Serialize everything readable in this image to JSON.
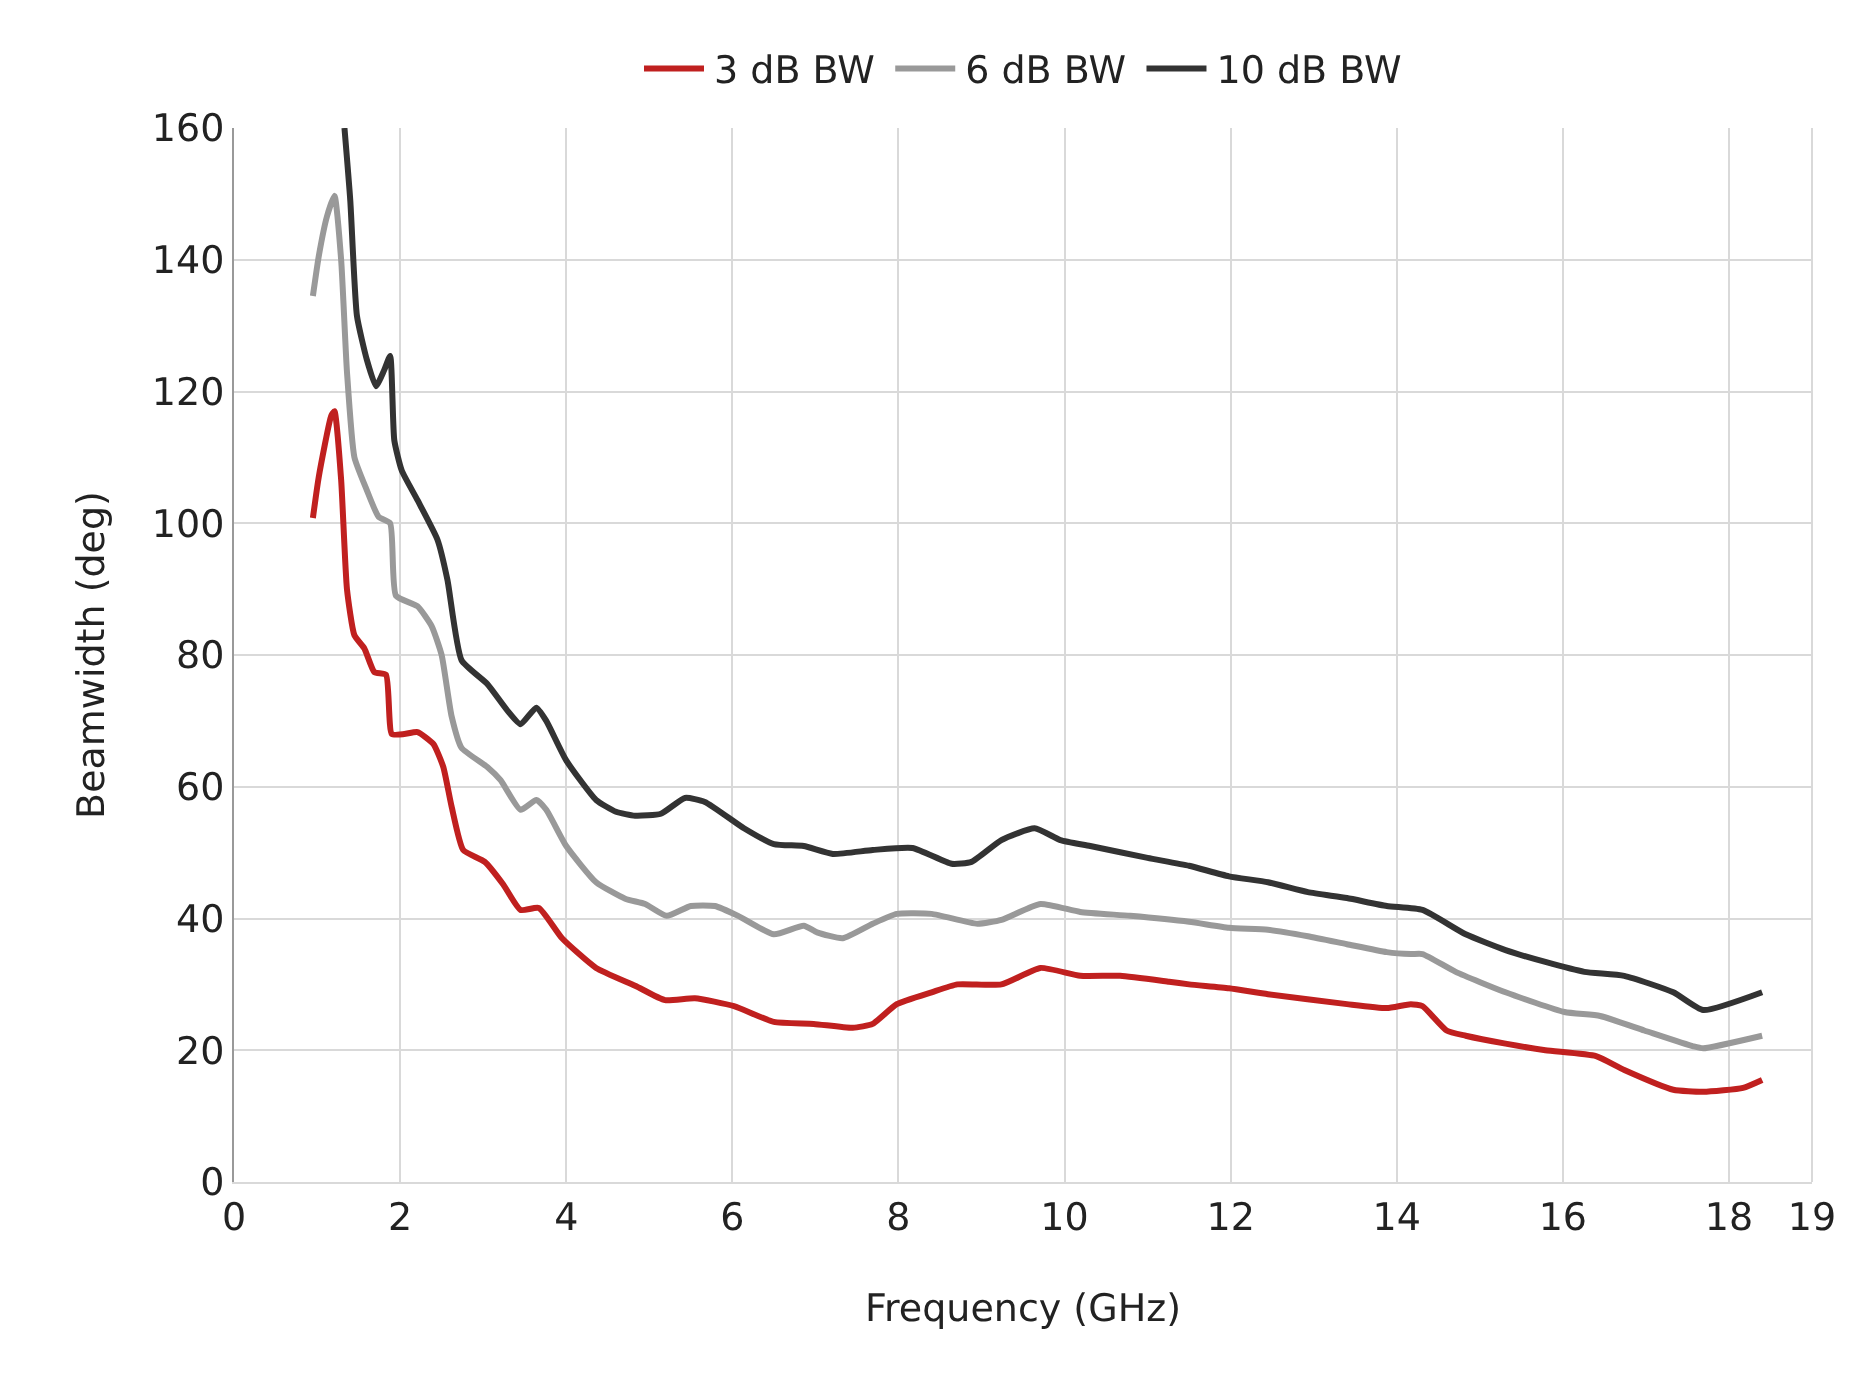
{
  "chart_data": {
    "type": "line",
    "xlabel": "Frequency (GHz)",
    "ylabel": "Beamwidth (deg)",
    "xlim": [
      0,
      19
    ],
    "xticks": [
      0,
      2,
      4,
      6,
      8,
      10,
      12,
      14,
      16,
      18,
      19
    ],
    "ylim": [
      0,
      160
    ],
    "yticks": [
      0,
      20,
      40,
      60,
      80,
      100,
      120,
      140,
      160
    ],
    "grid": true,
    "legend": "top",
    "line_style": "solid",
    "series": [
      {
        "name": "3 dB BW",
        "color": "#c0201f",
        "x": [
          0.95,
          1.02,
          1.17,
          1.21,
          1.29,
          1.36,
          1.45,
          1.57,
          1.69,
          1.83,
          1.9,
          2.05,
          2.21,
          2.4,
          2.52,
          2.62,
          2.76,
          3.02,
          3.24,
          3.45,
          3.67,
          3.95,
          4.36,
          4.83,
          5.19,
          5.55,
          6.02,
          6.5,
          6.98,
          7.45,
          7.69,
          7.98,
          8.4,
          8.71,
          9.24,
          9.71,
          10.19,
          10.67,
          11.26,
          11.5,
          11.98,
          12.45,
          13.4,
          13.88,
          14.17,
          14.31,
          14.6,
          14.83,
          15.31,
          15.79,
          16.4,
          16.74,
          17.33,
          17.69,
          18.17,
          18.4
        ],
        "values": [
          100.8,
          107,
          116.3,
          117,
          106.6,
          90,
          83,
          81,
          77.4,
          77,
          68,
          68,
          68.3,
          66.5,
          63,
          57,
          50.4,
          48.6,
          45.2,
          41.3,
          41.6,
          37,
          32.5,
          29.8,
          27.6,
          27.9,
          26.7,
          24.3,
          24,
          23.4,
          24,
          27,
          28.8,
          30,
          30,
          32.5,
          31.3,
          31.3,
          30.4,
          30,
          29.4,
          28.5,
          27,
          26.4,
          27,
          26.7,
          23,
          22.2,
          21,
          20,
          19.1,
          17,
          14,
          13.7,
          14.3,
          15.5
        ]
      },
      {
        "name": "6 dB BW",
        "color": "#999999",
        "x": [
          0.95,
          1.02,
          1.12,
          1.21,
          1.29,
          1.36,
          1.45,
          1.6,
          1.74,
          1.88,
          1.95,
          2.21,
          2.38,
          2.5,
          2.62,
          2.74,
          3.05,
          3.21,
          3.45,
          3.64,
          3.76,
          4,
          4.36,
          4.71,
          4.95,
          5.21,
          5.5,
          5.79,
          6.07,
          6.5,
          6.86,
          7.02,
          7.33,
          7.69,
          7.98,
          8.4,
          8.95,
          9.24,
          9.71,
          10.19,
          10.79,
          11.5,
          11.98,
          12.45,
          12.93,
          13.4,
          13.88,
          14.17,
          14.31,
          14.71,
          15.31,
          16.02,
          16.45,
          16.98,
          17.57,
          17.69,
          18.4
        ],
        "values": [
          134.5,
          140.5,
          146.6,
          149.7,
          140,
          123,
          110,
          105,
          101,
          100,
          89,
          87.4,
          84.4,
          80,
          70.7,
          65.9,
          63,
          61,
          56.5,
          58,
          56.5,
          51,
          45.5,
          43,
          42.2,
          40.4,
          41.9,
          41.9,
          40.4,
          37.6,
          38.9,
          37.9,
          37,
          39.2,
          40.7,
          40.7,
          39.2,
          39.8,
          42.2,
          41,
          40.4,
          39.5,
          38.6,
          38.3,
          37.3,
          36.1,
          34.9,
          34.6,
          34.6,
          31.9,
          28.8,
          25.8,
          25.2,
          23,
          20.6,
          20.3,
          22.2
        ]
      },
      {
        "name": "10 dB BW",
        "color": "#333333",
        "x": [
          1.33,
          1.4,
          1.48,
          1.6,
          1.71,
          1.81,
          1.88,
          1.93,
          2.02,
          2.21,
          2.45,
          2.57,
          2.74,
          3.05,
          3.29,
          3.45,
          3.64,
          3.76,
          4,
          4.36,
          4.6,
          4.83,
          5.14,
          5.43,
          5.67,
          6.14,
          6.5,
          6.86,
          7.21,
          7.69,
          8.17,
          8.64,
          8.88,
          9.24,
          9.64,
          9.95,
          10.31,
          11,
          11.5,
          11.98,
          12.45,
          12.93,
          13.4,
          13.88,
          14.31,
          14.83,
          15.31,
          15.79,
          16.26,
          16.74,
          17.33,
          17.69,
          18.4
        ],
        "values": [
          160,
          149,
          131.5,
          124.8,
          120.8,
          123.3,
          125.4,
          112.6,
          108,
          103.5,
          97.5,
          91.4,
          79.2,
          75.6,
          71.6,
          69.5,
          72,
          70,
          64,
          58,
          56.2,
          55.6,
          55.9,
          58.3,
          57.7,
          53.7,
          51.3,
          51,
          49.8,
          50.4,
          50.7,
          48.3,
          48.6,
          51.9,
          53.7,
          51.9,
          51,
          49.2,
          48,
          46.4,
          45.5,
          44,
          43.1,
          41.9,
          41.3,
          37.6,
          35.2,
          33.4,
          31.9,
          31.3,
          28.8,
          26.1,
          28.8
        ]
      }
    ]
  }
}
